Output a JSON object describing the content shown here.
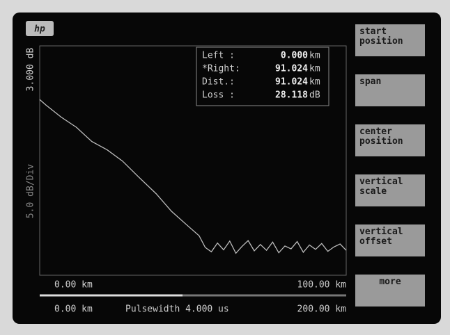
{
  "logo": "hp",
  "y_axis": {
    "top_label": "3.000 dB",
    "scale_label": "5.0 dB/Div"
  },
  "readout": {
    "rows": [
      {
        "label": "Left :",
        "value": "0.000",
        "unit": "km"
      },
      {
        "label": "*Right:",
        "value": "91.024",
        "unit": "km"
      },
      {
        "label": "Dist.:",
        "value": "91.024",
        "unit": "km"
      },
      {
        "label": "Loss :",
        "value": "28.118",
        "unit": "dB"
      }
    ]
  },
  "x_axis": {
    "start": "0.00 km",
    "end": "100.00 km"
  },
  "footer": {
    "start": "0.00 km",
    "pulsewidth": "Pulsewidth 4.000 us",
    "end": "200.00 km"
  },
  "softkeys": [
    "start position",
    "span",
    "center position",
    "vertical scale",
    "vertical offset",
    "more"
  ],
  "chart_data": {
    "type": "line",
    "color": "#bdbdbd",
    "x": [
      0,
      2,
      7,
      12,
      17,
      22,
      27,
      32,
      38,
      43,
      48,
      52,
      54,
      56,
      58,
      60,
      62,
      64,
      66,
      68,
      70,
      72,
      74,
      76,
      78,
      80,
      82,
      84,
      86,
      88,
      90,
      92,
      94,
      96,
      98,
      100
    ],
    "values": [
      0,
      -1.1,
      -3.6,
      -5.7,
      -8.6,
      -10.3,
      -12.6,
      -15.7,
      -19.3,
      -22.9,
      -25.7,
      -27.9,
      -30.3,
      -31.2,
      -29.4,
      -30.8,
      -29.0,
      -31.5,
      -30.1,
      -28.9,
      -31.0,
      -29.7,
      -30.9,
      -29.2,
      -31.4,
      -30.0,
      -30.6,
      -29.1,
      -31.3,
      -29.8,
      -30.7,
      -29.5,
      -31.1,
      -30.2,
      -29.6,
      -30.9
    ],
    "xlim": [
      0,
      100
    ],
    "ylim": [
      -36,
      11
    ]
  }
}
